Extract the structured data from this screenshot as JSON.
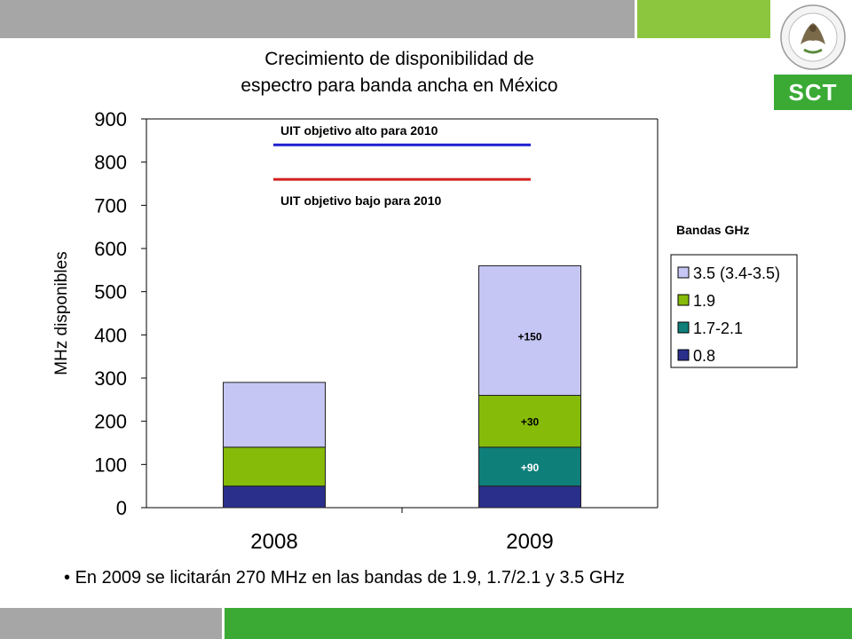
{
  "title_line1": "Crecimiento de disponibilidad de",
  "title_line2": "espectro para banda ancha en México",
  "logo_text": "SCT",
  "logo_seal_text": "ESTADOS UNIDOS MEXICANOS",
  "bullet_text": "En 2009 se licitarán 270 MHz en las bandas de 1.9, 1.7/2.1 y 3.5 GHz",
  "colors": {
    "band_08": "#2b2f8c",
    "band_17": "#0f7f7a",
    "band_19": "#86bb0a",
    "band_35": "#c5c6f4",
    "target_high": "#1f1fcf",
    "target_low": "#d42020",
    "top_gray": "#a6a6a6",
    "top_green": "#8cc63f",
    "bottom_green": "#3aaa35"
  },
  "chart_data": {
    "type": "bar",
    "stacked": true,
    "categories": [
      "2008",
      "2009"
    ],
    "series": [
      {
        "name": "0.8",
        "values": [
          50,
          50
        ],
        "color_key": "band_08"
      },
      {
        "name": "1.7-2.1",
        "values": [
          0,
          90
        ],
        "color_key": "band_17"
      },
      {
        "name": "1.9",
        "values": [
          90,
          120
        ],
        "color_key": "band_19"
      },
      {
        "name": "3.5 (3.4-3.5)",
        "values": [
          150,
          300
        ],
        "color_key": "band_35"
      }
    ],
    "bar_labels": [
      {
        "category": "2009",
        "series": "1.7-2.1",
        "text": "+90"
      },
      {
        "category": "2009",
        "series": "1.9",
        "text": "+30"
      },
      {
        "category": "2009",
        "series": "3.5 (3.4-3.5)",
        "text": "+150"
      }
    ],
    "reference_lines": [
      {
        "label": "UIT objetivo alto para 2010",
        "value": 840,
        "color_key": "target_high"
      },
      {
        "label": "UIT objetivo bajo para 2010",
        "value": 760,
        "color_key": "target_low"
      }
    ],
    "ylabel": "MHz disponibles",
    "ylim": [
      0,
      900
    ],
    "yticks": [
      0,
      100,
      200,
      300,
      400,
      500,
      600,
      700,
      800,
      900
    ],
    "legend_title": "Bandas GHz",
    "legend_order": [
      "3.5 (3.4-3.5)",
      "1.9",
      "1.7-2.1",
      "0.8"
    ],
    "legend_position": "right",
    "grid": false
  }
}
